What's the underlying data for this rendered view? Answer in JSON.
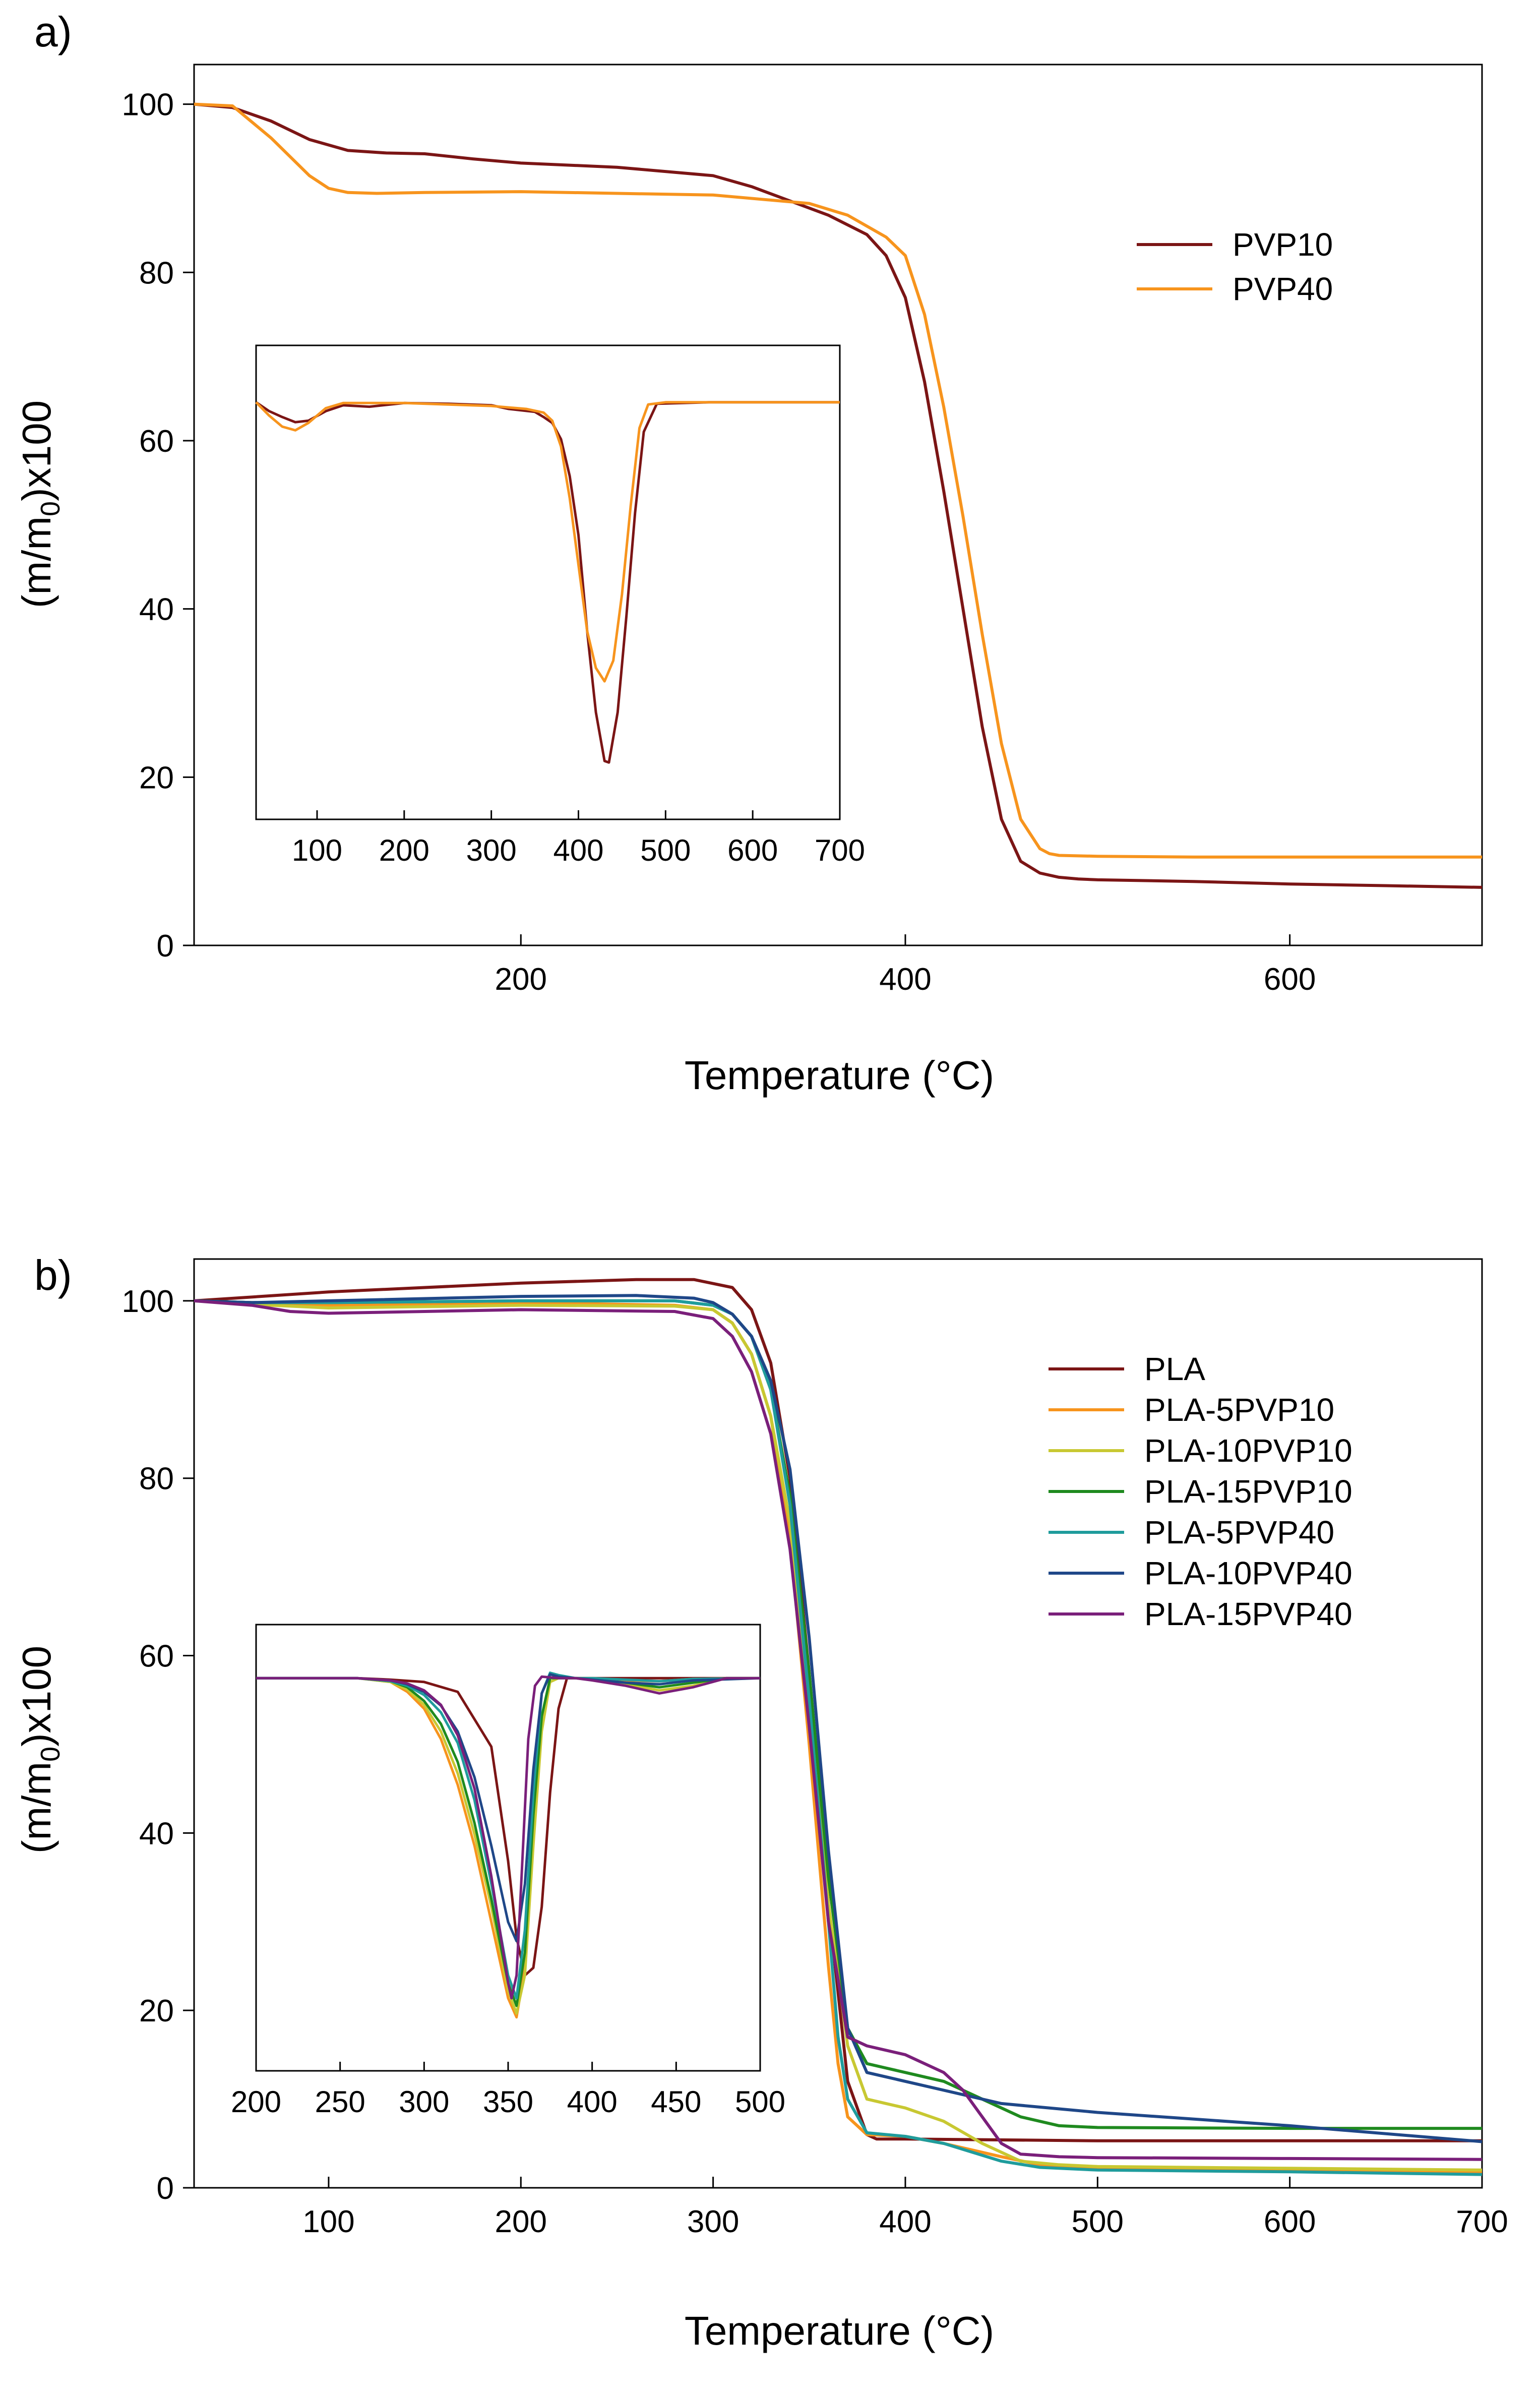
{
  "chart_data": [
    {
      "type": "line",
      "panel_label": "a)",
      "xlabel": "Temperature (°C)",
      "ylabel": "(m/m0)x100",
      "xlim": [
        30,
        700
      ],
      "ylim": [
        0,
        100
      ],
      "x_ticks": [
        200,
        400,
        600
      ],
      "y_ticks": [
        0,
        20,
        40,
        60,
        80,
        100
      ],
      "legend": {
        "position": "top-right"
      },
      "series": [
        {
          "name": "PVP10",
          "color": "#7b1515",
          "x": [
            30,
            50,
            70,
            90,
            110,
            130,
            150,
            175,
            200,
            250,
            300,
            320,
            340,
            360,
            380,
            390,
            400,
            410,
            420,
            430,
            440,
            450,
            460,
            470,
            480,
            490,
            500,
            550,
            600,
            650,
            700
          ],
          "y": [
            100,
            99.6,
            98,
            95.8,
            94.5,
            94.2,
            94.1,
            93.5,
            93,
            92.5,
            91.5,
            90.2,
            88.5,
            86.8,
            84.5,
            82,
            77,
            67,
            54,
            40,
            26,
            15,
            10,
            8.6,
            8.1,
            7.9,
            7.8,
            7.6,
            7.3,
            7.1,
            6.9
          ]
        },
        {
          "name": "PVP40",
          "color": "#f7941d",
          "x": [
            30,
            50,
            70,
            90,
            100,
            110,
            125,
            150,
            200,
            250,
            300,
            350,
            370,
            380,
            390,
            400,
            410,
            420,
            430,
            440,
            450,
            460,
            470,
            475,
            480,
            500,
            550,
            600,
            650,
            700
          ],
          "y": [
            100,
            99.8,
            96,
            91.5,
            90,
            89.5,
            89.4,
            89.5,
            89.6,
            89.4,
            89.2,
            88.2,
            86.8,
            85.5,
            84.2,
            82,
            75,
            64,
            51,
            37,
            24,
            15,
            11.5,
            10.9,
            10.7,
            10.6,
            10.5,
            10.5,
            10.5,
            10.5
          ]
        }
      ],
      "inset": {
        "xlim": [
          30,
          700
        ],
        "x_ticks": [
          100,
          200,
          300,
          400,
          500,
          600,
          700
        ],
        "series": [
          {
            "name": "PVP10",
            "x": [
              30,
              45,
              60,
              75,
              90,
              110,
              130,
              160,
              200,
              250,
              300,
              320,
              335,
              350,
              360,
              370,
              380,
              390,
              400,
              410,
              420,
              430,
              435,
              445,
              455,
              465,
              475,
              490,
              550,
              600,
              650,
              700
            ],
            "y": [
              0,
              -12,
              -20,
              -27,
              -25,
              -12,
              -4,
              -6,
              -1,
              -2,
              -4,
              -9,
              -11,
              -13,
              -20,
              -28,
              -50,
              -100,
              -180,
              -310,
              -420,
              -486,
              -488,
              -420,
              -290,
              -150,
              -40,
              -2,
              0,
              0,
              0,
              0
            ]
          },
          {
            "name": "PVP40",
            "x": [
              30,
              45,
              60,
              75,
              90,
              110,
              130,
              160,
              200,
              250,
              300,
              340,
              360,
              370,
              380,
              390,
              400,
              410,
              420,
              430,
              440,
              450,
              460,
              470,
              480,
              500,
              550,
              600,
              650,
              700
            ],
            "y": [
              0,
              -18,
              -33,
              -38,
              -28,
              -8,
              -1,
              -1,
              -1,
              -3,
              -5,
              -9,
              -14,
              -25,
              -60,
              -130,
              -220,
              -310,
              -360,
              -378,
              -350,
              -260,
              -140,
              -35,
              -3,
              0,
              0,
              0,
              0,
              0
            ]
          }
        ]
      }
    },
    {
      "type": "line",
      "panel_label": "b)",
      "xlabel": "Temperature (°C)",
      "ylabel": "(m/m0)x100",
      "xlim": [
        30,
        700
      ],
      "ylim": [
        0,
        100
      ],
      "x_ticks": [
        100,
        200,
        300,
        400,
        500,
        600,
        700
      ],
      "y_ticks": [
        0,
        20,
        40,
        60,
        80,
        100
      ],
      "legend": {
        "position": "top-right"
      },
      "series": [
        {
          "name": "PLA",
          "color": "#7b1515",
          "x": [
            30,
            100,
            200,
            260,
            290,
            310,
            320,
            330,
            340,
            350,
            360,
            370,
            380,
            385,
            390,
            400,
            500,
            600,
            700
          ],
          "y": [
            100,
            101,
            102,
            102.4,
            102.4,
            101.5,
            99,
            93,
            80,
            58,
            32,
            12,
            6,
            5.5,
            5.5,
            5.5,
            5.3,
            5.3,
            5.3
          ]
        },
        {
          "name": "PLA-5PVP10",
          "color": "#f7941d",
          "x": [
            30,
            60,
            100,
            200,
            280,
            300,
            310,
            320,
            330,
            340,
            350,
            360,
            365,
            370,
            380,
            400,
            420,
            450,
            470,
            500,
            600,
            700
          ],
          "y": [
            100,
            99.8,
            99.5,
            99.8,
            99.5,
            99,
            97.5,
            94,
            87,
            73,
            50,
            25,
            14,
            8,
            6,
            5.8,
            5,
            3.5,
            2.6,
            2.3,
            2,
            1.8
          ]
        },
        {
          "name": "PLA-10PVP10",
          "color": "#c8c832",
          "x": [
            30,
            60,
            100,
            200,
            280,
            300,
            310,
            320,
            330,
            340,
            350,
            360,
            370,
            380,
            390,
            400,
            420,
            440,
            460,
            480,
            500,
            600,
            700
          ],
          "y": [
            100,
            99.6,
            99.2,
            99.5,
            99.4,
            99,
            97.5,
            94,
            87,
            75,
            55,
            32,
            16,
            10,
            9.5,
            9,
            7.5,
            5,
            3,
            2.6,
            2.4,
            2.2,
            2
          ]
        },
        {
          "name": "PLA-15PVP10",
          "color": "#1f8a1f",
          "x": [
            30,
            60,
            100,
            200,
            280,
            300,
            310,
            320,
            330,
            340,
            350,
            360,
            370,
            380,
            390,
            400,
            420,
            440,
            460,
            480,
            500,
            600,
            700
          ],
          "y": [
            100,
            99.8,
            99.8,
            100,
            100,
            99.5,
            98.5,
            96,
            90,
            78,
            58,
            35,
            18,
            14,
            13.5,
            13,
            12,
            10,
            8,
            7,
            6.8,
            6.7,
            6.7
          ]
        },
        {
          "name": "PLA-5PVP40",
          "color": "#1f9c9c",
          "x": [
            30,
            60,
            100,
            200,
            280,
            300,
            310,
            320,
            330,
            340,
            350,
            360,
            365,
            370,
            380,
            400,
            420,
            450,
            470,
            500,
            600,
            700
          ],
          "y": [
            100,
            99.8,
            99.8,
            100,
            100,
            99.5,
            98.5,
            96,
            90,
            77,
            55,
            30,
            17,
            10,
            6.2,
            5.8,
            5,
            3,
            2.3,
            2,
            1.8,
            1.5
          ]
        },
        {
          "name": "PLA-10PVP40",
          "color": "#1f4788",
          "x": [
            30,
            60,
            100,
            200,
            260,
            290,
            300,
            310,
            320,
            330,
            340,
            350,
            360,
            370,
            380,
            390,
            400,
            420,
            450,
            500,
            600,
            700
          ],
          "y": [
            100,
            99.8,
            100,
            100.5,
            100.6,
            100.3,
            99.8,
            98.5,
            96,
            91,
            81,
            62,
            38,
            18,
            13,
            12.5,
            12,
            11,
            9.5,
            8.5,
            7,
            5.2
          ]
        },
        {
          "name": "PLA-15PVP40",
          "color": "#7a1f7a",
          "x": [
            30,
            60,
            80,
            100,
            200,
            280,
            300,
            310,
            320,
            330,
            340,
            350,
            360,
            370,
            380,
            400,
            420,
            430,
            440,
            450,
            460,
            480,
            500,
            600,
            700
          ],
          "y": [
            100,
            99.5,
            98.8,
            98.6,
            99,
            98.8,
            98,
            96,
            92,
            85,
            72,
            52,
            30,
            17,
            16,
            15,
            13,
            11,
            8,
            5,
            3.8,
            3.5,
            3.4,
            3.3,
            3.2
          ]
        }
      ],
      "inset": {
        "xlim": [
          200,
          500
        ],
        "x_ticks": [
          200,
          250,
          300,
          350,
          400,
          450,
          500
        ],
        "series": [
          {
            "name": "PLA",
            "x": [
              200,
              260,
              280,
              300,
              320,
              340,
              350,
              355,
              360,
              365,
              370,
              375,
              380,
              385,
              390,
              400,
              420,
              450,
              500
            ],
            "y": [
              0,
              0,
              -2,
              -5,
              -18,
              -90,
              -240,
              -340,
              -390,
              -380,
              -300,
              -150,
              -40,
              0,
              0,
              0,
              0,
              0,
              0
            ]
          },
          {
            "name": "PLA-5PVP10",
            "x": [
              200,
              260,
              280,
              290,
              300,
              310,
              320,
              330,
              340,
              350,
              355,
              360,
              365,
              370,
              375,
              380,
              390,
              400,
              420,
              440,
              460,
              500
            ],
            "y": [
              0,
              0,
              -5,
              -18,
              -40,
              -80,
              -140,
              -220,
              -320,
              -420,
              -445,
              -380,
              -200,
              -60,
              0,
              3,
              0,
              0,
              -3,
              -4,
              -1,
              0
            ]
          },
          {
            "name": "PLA-10PVP10",
            "x": [
              200,
              260,
              280,
              290,
              300,
              310,
              320,
              330,
              340,
              350,
              355,
              360,
              365,
              370,
              375,
              380,
              390,
              400,
              420,
              440,
              460,
              480,
              500
            ],
            "y": [
              0,
              0,
              -5,
              -15,
              -35,
              -70,
              -125,
              -205,
              -300,
              -410,
              -440,
              -390,
              -220,
              -70,
              -5,
              0,
              0,
              -2,
              -8,
              -16,
              -10,
              0,
              0
            ]
          },
          {
            "name": "PLA-15PVP10",
            "x": [
              200,
              260,
              280,
              290,
              300,
              310,
              320,
              330,
              340,
              350,
              355,
              360,
              365,
              370,
              375,
              380,
              390,
              400,
              420,
              440,
              460,
              480,
              500
            ],
            "y": [
              0,
              0,
              -4,
              -12,
              -30,
              -60,
              -110,
              -190,
              -290,
              -400,
              -430,
              -360,
              -180,
              -50,
              0,
              0,
              0,
              -1,
              -6,
              -12,
              -6,
              0,
              0
            ]
          },
          {
            "name": "PLA-5PVP40",
            "x": [
              200,
              260,
              280,
              290,
              300,
              310,
              320,
              330,
              340,
              350,
              355,
              360,
              365,
              370,
              375,
              380,
              390,
              400,
              420,
              440,
              460,
              500
            ],
            "y": [
              0,
              0,
              -4,
              -10,
              -22,
              -45,
              -85,
              -160,
              -270,
              -390,
              -420,
              -330,
              -150,
              -20,
              7,
              4,
              0,
              0,
              -2,
              -4,
              -1,
              0
            ]
          },
          {
            "name": "PLA-10PVP40",
            "x": [
              200,
              260,
              280,
              290,
              300,
              310,
              320,
              330,
              340,
              350,
              355,
              360,
              365,
              370,
              375,
              380,
              390,
              400,
              420,
              440,
              460,
              500
            ],
            "y": [
              0,
              0,
              -3,
              -8,
              -18,
              -36,
              -70,
              -130,
              -220,
              -320,
              -345,
              -270,
              -120,
              -20,
              5,
              2,
              0,
              -2,
              -6,
              -8,
              -3,
              0
            ]
          },
          {
            "name": "PLA-15PVP40",
            "x": [
              200,
              260,
              280,
              290,
              300,
              310,
              320,
              330,
              340,
              350,
              352,
              355,
              358,
              362,
              366,
              370,
              380,
              390,
              400,
              420,
              440,
              460,
              480,
              500
            ],
            "y": [
              0,
              0,
              -3,
              -7,
              -16,
              -35,
              -75,
              -145,
              -260,
              -400,
              -420,
              -390,
              -260,
              -80,
              -10,
              2,
              0,
              0,
              -3,
              -10,
              -20,
              -12,
              0,
              0
            ]
          }
        ]
      }
    }
  ]
}
